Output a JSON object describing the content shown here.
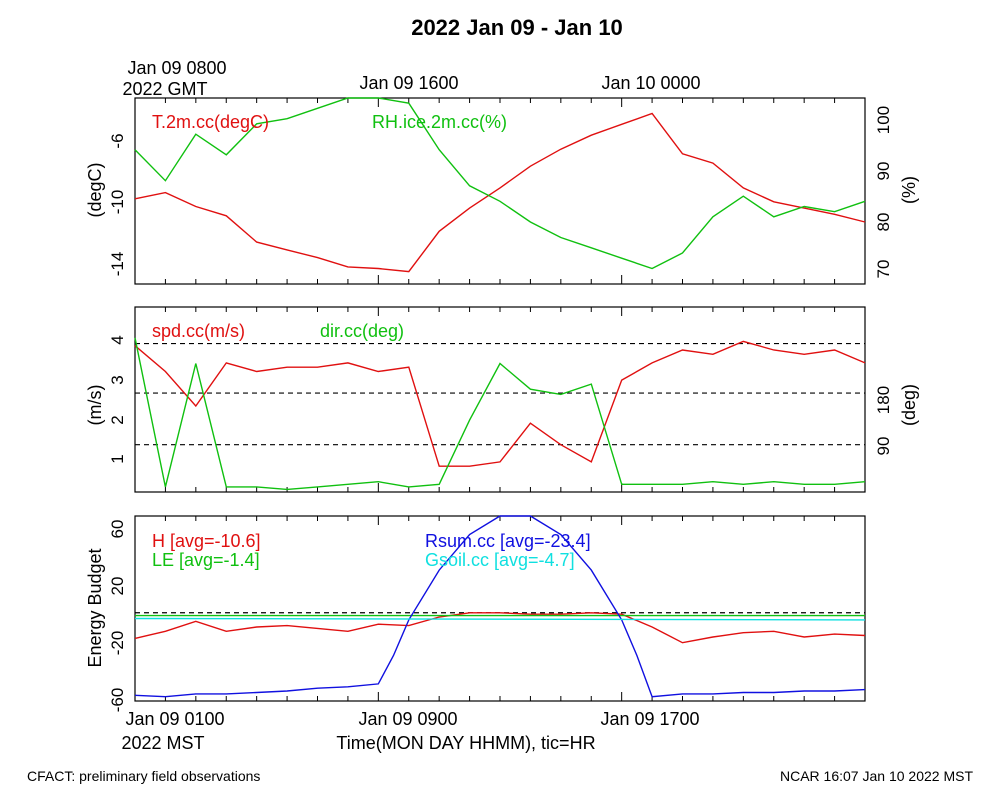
{
  "title": "2022 Jan 09 - Jan 10",
  "footer": {
    "left": "CFACT: preliminary field observations",
    "right": "NCAR 16:07 Jan 10 2022 MST"
  },
  "top_axis": {
    "labels": [
      "Jan 09 0800",
      "Jan 09 1600",
      "Jan 10 0000"
    ],
    "sublabel": "2022 GMT"
  },
  "bottom_axis": {
    "labels": [
      "Jan 09 0100",
      "Jan 09 0900",
      "Jan 09 1700"
    ],
    "sublabel": "2022 MST",
    "title": "Time(MON DAY HHMM), tic=HR"
  },
  "colors": {
    "red": "#e01010",
    "green": "#10c010",
    "blue": "#1010e0",
    "cyan": "#10e0e0",
    "black": "#000000"
  },
  "chart_data": [
    {
      "type": "line",
      "panel": "temperature-humidity",
      "ylabel": "(degC)",
      "y2label": "(%)",
      "ylim": [
        -15.4,
        -3.4
      ],
      "y2lim": [
        67,
        103
      ],
      "yticks": [
        "-6",
        "-10",
        "-14"
      ],
      "y2ticks": [
        "100",
        "90",
        "80",
        "70"
      ],
      "x_hours_mst": [
        1,
        25
      ],
      "series": [
        {
          "name": "T.2m.cc(degC)",
          "axis": "left",
          "color": "red",
          "x": [
            1,
            2,
            3,
            4,
            5,
            6,
            7,
            8,
            9,
            10,
            11,
            12,
            13,
            14,
            15,
            16,
            17,
            18,
            19,
            20,
            21,
            22,
            23,
            24,
            25
          ],
          "values": [
            -9.9,
            -9.5,
            -10.4,
            -11.0,
            -12.7,
            -13.2,
            -13.7,
            -14.3,
            -14.4,
            -14.6,
            -12.0,
            -10.5,
            -9.2,
            -7.8,
            -6.7,
            -5.8,
            -5.1,
            -4.4,
            -7.0,
            -7.6,
            -9.2,
            -10.1,
            -10.5,
            -10.9,
            -11.4
          ]
        },
        {
          "name": "RH.ice.2m.cc(%)",
          "axis": "right",
          "color": "green",
          "x": [
            1,
            2,
            3,
            4,
            5,
            6,
            7,
            8,
            9,
            10,
            11,
            12,
            13,
            14,
            15,
            16,
            17,
            18,
            19,
            20,
            21,
            22,
            23,
            24,
            25
          ],
          "values": [
            93.0,
            87.0,
            96.0,
            92.0,
            98.0,
            99.0,
            101.0,
            103.0,
            103.0,
            102.0,
            93.0,
            86.0,
            83.0,
            79.0,
            76.0,
            74.0,
            72.0,
            70.0,
            73.0,
            80.0,
            84.0,
            80.0,
            82.0,
            81.0,
            83.0
          ]
        }
      ]
    },
    {
      "type": "line",
      "panel": "wind",
      "ylabel": "(m/s)",
      "y2label": "(deg)",
      "ylim": [
        0.2,
        4.5
      ],
      "y2lim": [
        0,
        360
      ],
      "yticks": [
        "4",
        "3",
        "2",
        "1"
      ],
      "y2ticks": [
        "180",
        "90"
      ],
      "dashed_lines_m_s": [
        3.65,
        2.5,
        1.3
      ],
      "series": [
        {
          "name": "spd.cc(m/s)",
          "axis": "left",
          "color": "red",
          "x": [
            1,
            2,
            3,
            4,
            5,
            6,
            7,
            8,
            9,
            10,
            11,
            12,
            13,
            14,
            15,
            16,
            17,
            18,
            19,
            20,
            21,
            22,
            23,
            24,
            25
          ],
          "values": [
            3.6,
            3.0,
            2.2,
            3.2,
            3.0,
            3.1,
            3.1,
            3.2,
            3.0,
            3.1,
            0.8,
            0.8,
            0.9,
            1.8,
            1.3,
            0.9,
            2.8,
            3.2,
            3.5,
            3.4,
            3.7,
            3.5,
            3.4,
            3.5,
            3.2
          ]
        },
        {
          "name": "dir.cc(deg)",
          "axis": "right",
          "color": "green",
          "x": [
            1,
            2,
            3,
            4,
            5,
            6,
            7,
            8,
            9,
            10,
            11,
            12,
            13,
            14,
            15,
            16,
            17,
            18,
            19,
            20,
            21,
            22,
            23,
            24,
            25
          ],
          "values": [
            300,
            10,
            250,
            10,
            10,
            5,
            10,
            15,
            20,
            10,
            15,
            140,
            250,
            200,
            190,
            210,
            15,
            15,
            15,
            20,
            15,
            20,
            15,
            15,
            20
          ]
        }
      ]
    },
    {
      "type": "line",
      "panel": "energy-budget",
      "ylabel": "Energy Budget",
      "ylim": [
        -62,
        68
      ],
      "yticks": [
        "60",
        "20",
        "-20",
        "-60"
      ],
      "dashed_line": 0,
      "series": [
        {
          "name": "H [avg=-10.6]",
          "color": "red",
          "x": [
            1,
            2,
            3,
            4,
            5,
            6,
            7,
            8,
            9,
            10,
            11,
            12,
            13,
            14,
            15,
            16,
            17,
            18,
            19,
            20,
            21,
            22,
            23,
            24,
            25
          ],
          "values": [
            -18,
            -13,
            -6,
            -13,
            -10,
            -9,
            -11,
            -13,
            -8,
            -9,
            -3,
            0,
            0,
            -1,
            -1,
            0,
            -1,
            -10,
            -21,
            -17,
            -14,
            -13,
            -17,
            -15,
            -16
          ]
        },
        {
          "name": "LE [avg=-1.4]",
          "color": "green",
          "x": [
            1,
            25
          ],
          "values": [
            -2,
            -2
          ]
        },
        {
          "name": "Rsum.cc [avg=-23.4]",
          "color": "blue",
          "x": [
            1,
            2,
            3,
            4,
            5,
            6,
            7,
            8,
            9,
            9.5,
            10,
            11,
            12,
            13,
            14,
            15,
            16,
            17,
            17.5,
            18,
            19,
            20,
            21,
            22,
            23,
            24,
            25
          ],
          "values": [
            -58,
            -59,
            -57,
            -57,
            -56,
            -55,
            -53,
            -52,
            -50,
            -30,
            -5,
            30,
            55,
            68,
            68,
            55,
            30,
            -5,
            -30,
            -59,
            -57,
            -57,
            -56,
            -56,
            -55,
            -55,
            -54
          ]
        },
        {
          "name": "Gsoil.cc [avg=-4.7]",
          "color": "cyan",
          "x": [
            1,
            25
          ],
          "values": [
            -4,
            -5
          ]
        }
      ]
    }
  ]
}
